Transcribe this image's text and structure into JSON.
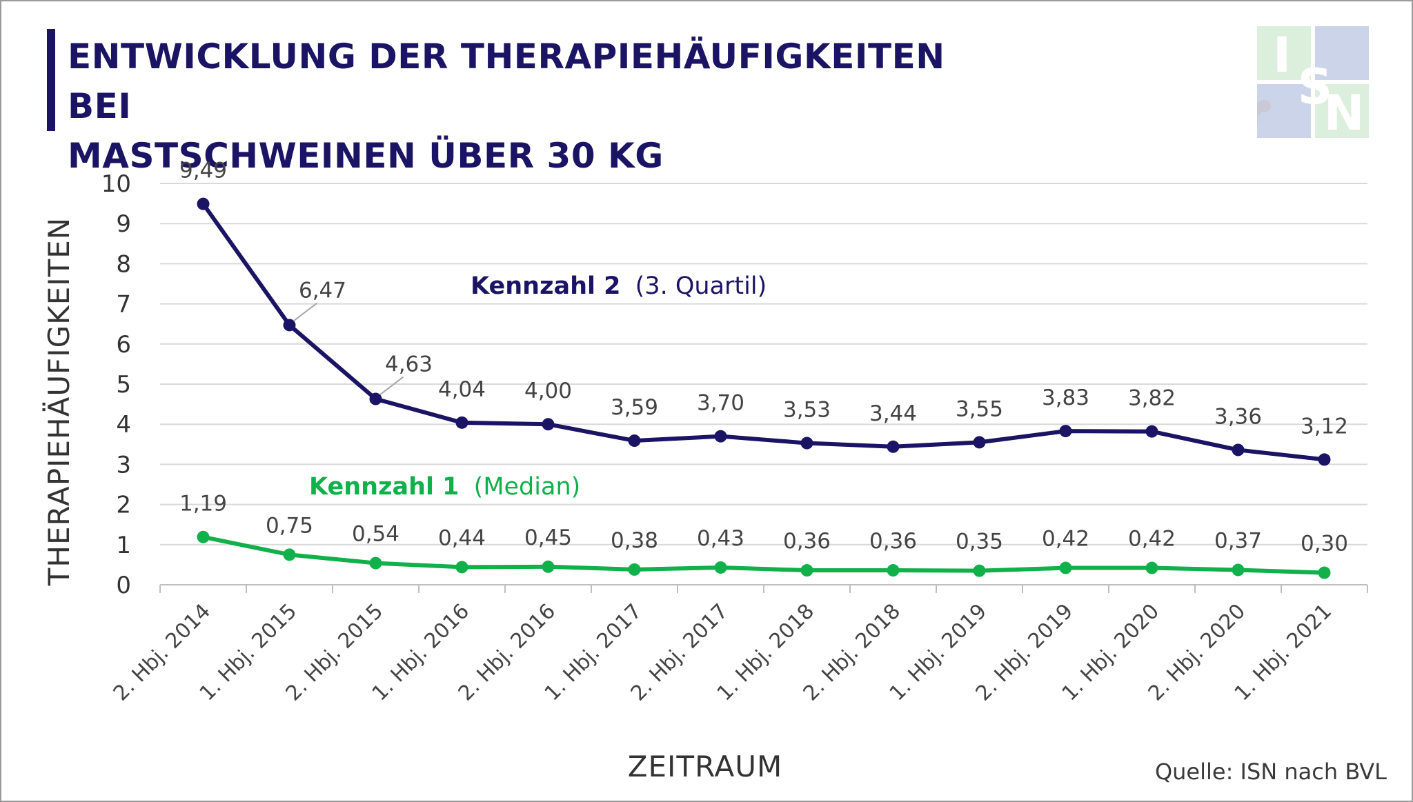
{
  "title_line1": "ENTWICKLUNG DER THERAPIEHÄUFIGKEITEN BEI",
  "title_line2": "MASTSCHWEINEN ÜBER 30 KG",
  "source": "Quelle: ISN nach BVL",
  "logo_text": [
    "I",
    "S",
    "N"
  ],
  "colors": {
    "title": "#1b1464",
    "series_kennzahl2": "#1b1464",
    "series_kennzahl1": "#10b04a",
    "grid": "#d9d9d9",
    "logo_green": "#dcefdc",
    "logo_blue": "#ccd4ea",
    "logo_letter": "#ffffff"
  },
  "chart_data": {
    "type": "line",
    "categories": [
      "2. Hbj. 2014",
      "1. Hbj. 2015",
      "2. Hbj. 2015",
      "1. Hbj. 2016",
      "2. Hbj. 2016",
      "1. Hbj. 2017",
      "2. Hbj. 2017",
      "1. Hbj. 2018",
      "2. Hbj. 2018",
      "1. Hbj. 2019",
      "2. Hbj. 2019",
      "1. Hbj. 2020",
      "2. Hbj. 2020",
      "1. Hbj. 2021"
    ],
    "series": [
      {
        "name": "Kennzahl 2",
        "name_suffix": "(3. Quartil)",
        "color": "#1b1464",
        "values": [
          9.49,
          6.47,
          4.63,
          4.04,
          4.0,
          3.59,
          3.7,
          3.53,
          3.44,
          3.55,
          3.83,
          3.82,
          3.36,
          3.12
        ],
        "labels": [
          "9,49",
          "6,47",
          "4,63",
          "4,04",
          "4,00",
          "3,59",
          "3,70",
          "3,53",
          "3,44",
          "3,55",
          "3,83",
          "3,82",
          "3,36",
          "3,12"
        ]
      },
      {
        "name": "Kennzahl 1",
        "name_suffix": "(Median)",
        "color": "#10b04a",
        "values": [
          1.19,
          0.75,
          0.54,
          0.44,
          0.45,
          0.38,
          0.43,
          0.36,
          0.36,
          0.35,
          0.42,
          0.42,
          0.37,
          0.3
        ],
        "labels": [
          "1,19",
          "0,75",
          "0,54",
          "0,44",
          "0,45",
          "0,38",
          "0,43",
          "0,36",
          "0,36",
          "0,35",
          "0,42",
          "0,42",
          "0,37",
          "0,30"
        ]
      }
    ],
    "xlabel": "ZEITRAUM",
    "ylabel": "THERAPIEHÄUFIGKEITEN",
    "ylim": [
      0,
      10
    ],
    "yticks": [
      0,
      1,
      2,
      3,
      4,
      5,
      6,
      7,
      8,
      9,
      10
    ],
    "grid": true,
    "legend": "inline series labels"
  }
}
